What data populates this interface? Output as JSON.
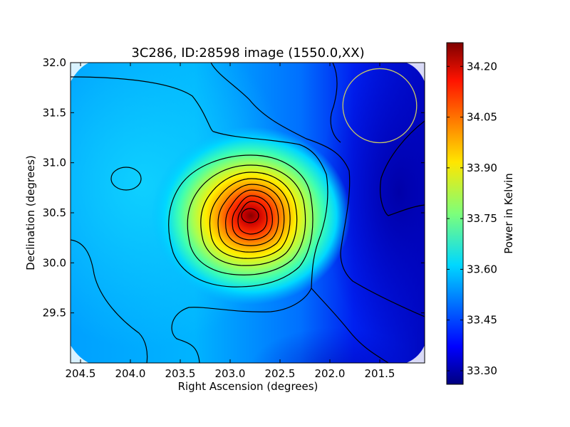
{
  "chart_data": {
    "type": "heatmap",
    "title": "3C286, ID:28598 image (1550.0,XX)",
    "xlabel": "Right Ascension (degrees)",
    "ylabel": "Declination (degrees)",
    "xlim": [
      204.6,
      201.05
    ],
    "ylim": [
      29.0,
      32.0
    ],
    "x_ticks": [
      204.5,
      204.0,
      203.5,
      203.0,
      202.5,
      202.0,
      201.5
    ],
    "x_tick_labels": [
      "204.5",
      "204.0",
      "203.5",
      "203.0",
      "202.5",
      "202.0",
      "201.5"
    ],
    "y_ticks": [
      29.5,
      30.0,
      30.5,
      31.0,
      31.5,
      32.0
    ],
    "y_tick_labels": [
      "29.5",
      "30.0",
      "30.5",
      "31.0",
      "31.5",
      "32.0"
    ],
    "colormap": "jet",
    "colorbar": {
      "label": "Power in Kelvin",
      "min": 33.26,
      "max": 34.27,
      "ticks": [
        33.3,
        33.45,
        33.6,
        33.75,
        33.9,
        34.05,
        34.2
      ],
      "tick_labels": [
        "33.30",
        "33.45",
        "33.60",
        "33.75",
        "33.90",
        "34.05",
        "34.20"
      ]
    },
    "source_peak": {
      "ra": 202.75,
      "dec": 30.5,
      "value": 34.26
    },
    "beam_circle": {
      "ra": 201.5,
      "dec": 31.57,
      "radius_deg": 0.37,
      "color": "#c8c864"
    },
    "grid": false,
    "legend": "none"
  }
}
